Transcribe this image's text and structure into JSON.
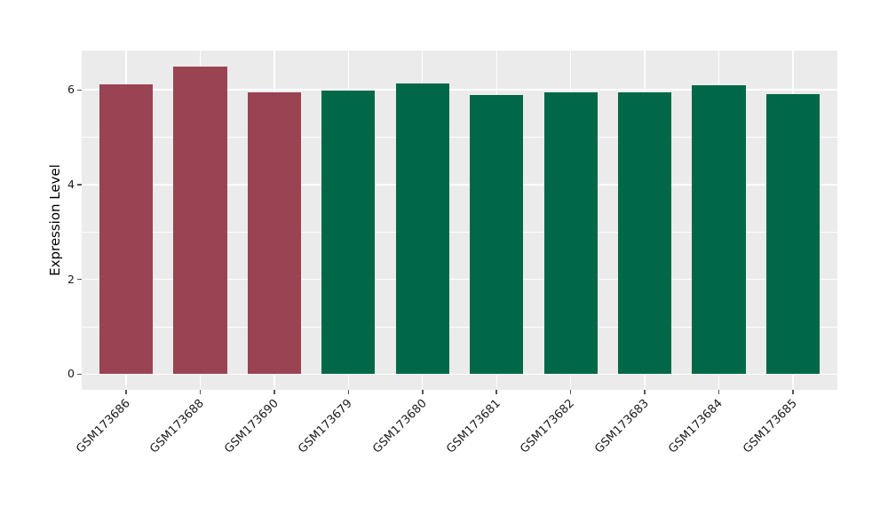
{
  "figure": {
    "background": "#ffffff",
    "panel_background": "#ebebeb",
    "grid_color": "#ffffff",
    "tick_color": "#555555",
    "text_color": "#1a1a1a"
  },
  "chart_data": {
    "type": "bar",
    "title": "",
    "xlabel": "",
    "ylabel": "Expression Level",
    "categories": [
      "GSM173686",
      "GSM173688",
      "GSM173690",
      "GSM173679",
      "GSM173680",
      "GSM173681",
      "GSM173682",
      "GSM173683",
      "GSM173684",
      "GSM173685"
    ],
    "values": [
      6.12,
      6.5,
      5.95,
      5.99,
      6.13,
      5.89,
      5.95,
      5.95,
      6.1,
      5.91
    ],
    "bar_colors": [
      "#9a4352",
      "#9a4352",
      "#9a4352",
      "#006848",
      "#006848",
      "#006848",
      "#006848",
      "#006848",
      "#006848",
      "#006848"
    ],
    "group_colors": {
      "left_group": "#9a4352",
      "right_group": "#006848"
    },
    "yticks": [
      0,
      2,
      4,
      6
    ],
    "yticks_minor": [
      1,
      3,
      5
    ],
    "ylim": [
      -0.33,
      6.83
    ],
    "grid": true,
    "legend": false,
    "x_tick_rotation": 45,
    "bar_width_fraction": 0.72
  }
}
